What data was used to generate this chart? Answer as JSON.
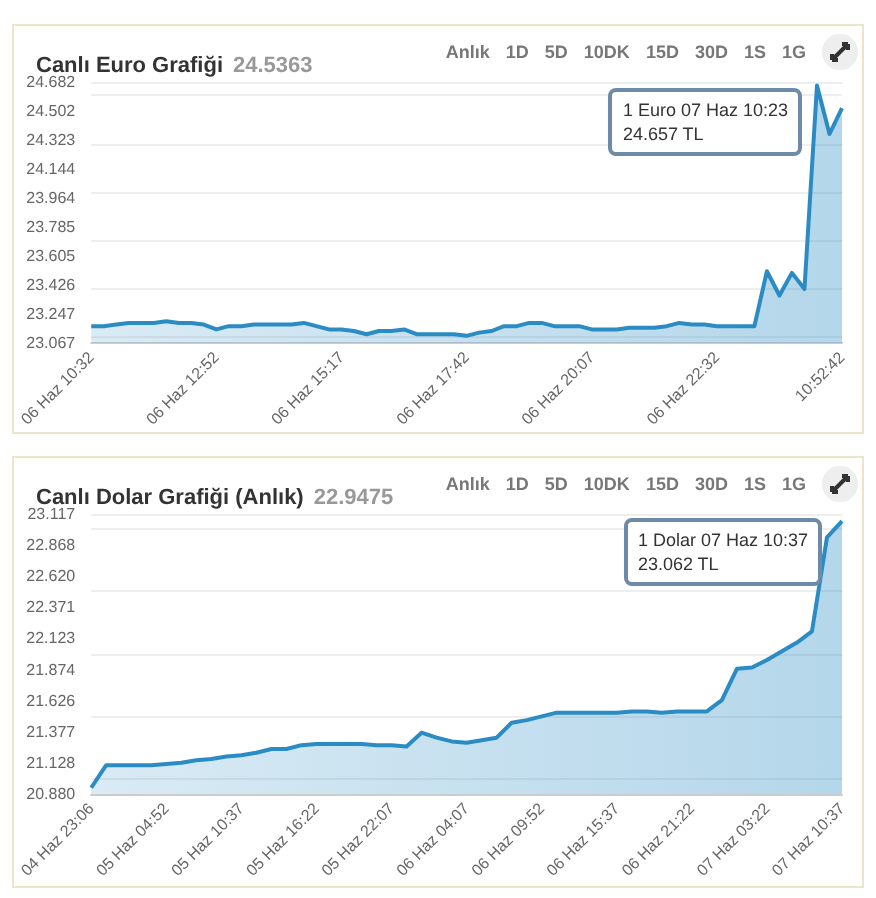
{
  "chart_data": [
    {
      "type": "area",
      "title": "Canlı Euro Grafiği",
      "subtitle": "24.5363",
      "categories": [
        "06 Haz 10:32",
        null,
        null,
        null,
        null,
        null,
        null,
        null,
        null,
        null,
        "06 Haz 12:52",
        null,
        null,
        null,
        null,
        null,
        null,
        null,
        null,
        null,
        "06 Haz 15:17",
        null,
        null,
        null,
        null,
        null,
        null,
        null,
        null,
        null,
        "06 Haz 17:42",
        null,
        null,
        null,
        null,
        null,
        null,
        null,
        null,
        null,
        "06 Haz 20:07",
        null,
        null,
        null,
        null,
        null,
        null,
        null,
        null,
        null,
        "06 Haz 22:32",
        null,
        null,
        null,
        null,
        null,
        null,
        null,
        null,
        null,
        "10:52:42"
      ],
      "series": [
        {
          "color": "#2b8cc4",
          "values": [
            23.17,
            23.17,
            23.18,
            23.19,
            23.19,
            23.19,
            23.2,
            23.19,
            23.19,
            23.18,
            23.15,
            23.17,
            23.17,
            23.18,
            23.18,
            23.18,
            23.18,
            23.19,
            23.17,
            23.15,
            23.15,
            23.14,
            23.12,
            23.14,
            23.14,
            23.15,
            23.12,
            23.12,
            23.12,
            23.12,
            23.11,
            23.13,
            23.14,
            23.17,
            23.17,
            23.19,
            23.19,
            23.17,
            23.17,
            23.17,
            23.15,
            23.15,
            23.15,
            23.16,
            23.16,
            23.16,
            23.17,
            23.19,
            23.18,
            23.18,
            23.17,
            23.17,
            23.17,
            23.17,
            23.51,
            23.36,
            23.5,
            23.4,
            24.66,
            24.36,
            24.52
          ]
        }
      ],
      "ylim": [
        23.067,
        24.682
      ],
      "yticks": [
        23.067,
        23.247,
        23.426,
        23.605,
        23.785,
        23.964,
        24.144,
        24.323,
        24.502,
        24.682
      ],
      "grid": "y",
      "marker": "none",
      "annotations": [
        "Anlık",
        "1D",
        "5D",
        "10DK",
        "15D",
        "30D",
        "1S",
        "1G",
        "1 Euro 07 Haz 10:23\n24.657 TL"
      ]
    },
    {
      "type": "area",
      "title": "Canlı Dolar Grafiği (Anlık)",
      "subtitle": "22.9475",
      "categories": [
        "04 Haz 23:06",
        null,
        null,
        null,
        null,
        "05 Haz 04:52",
        null,
        null,
        null,
        null,
        "05 Haz 10:37",
        null,
        null,
        null,
        null,
        "05 Haz 16:22",
        null,
        null,
        null,
        null,
        "05 Haz 22:07",
        null,
        null,
        null,
        null,
        "06 Haz 04:07",
        null,
        null,
        null,
        null,
        "06 Haz 09:52",
        null,
        null,
        null,
        null,
        "06 Haz 15:37",
        null,
        null,
        null,
        null,
        "06 Haz 21:22",
        null,
        null,
        null,
        null,
        "07 Haz 03:22",
        null,
        null,
        null,
        null,
        "07 Haz 10:37"
      ],
      "series": [
        {
          "color": "#2b8cc4",
          "values": [
            20.93,
            21.11,
            21.11,
            21.11,
            21.11,
            21.12,
            21.13,
            21.15,
            21.16,
            21.18,
            21.19,
            21.21,
            21.24,
            21.24,
            21.27,
            21.28,
            21.28,
            21.28,
            21.28,
            21.27,
            21.27,
            21.26,
            21.37,
            21.33,
            21.3,
            21.29,
            21.31,
            21.33,
            21.45,
            21.47,
            21.5,
            21.53,
            21.53,
            21.53,
            21.53,
            21.53,
            21.54,
            21.54,
            21.53,
            21.54,
            21.54,
            21.54,
            21.63,
            21.88,
            21.89,
            21.95,
            22.02,
            22.09,
            22.18,
            22.93,
            23.06
          ]
        }
      ],
      "ylim": [
        20.88,
        23.117
      ],
      "yticks": [
        {
          "value": 20.88,
          "label": "20.880"
        },
        21.128,
        21.377,
        21.626,
        21.874,
        22.123,
        22.371,
        {
          "value": 22.62,
          "label": "22.620"
        },
        22.868,
        23.117
      ],
      "grid": "y",
      "marker": "none",
      "annotations": [
        "Anlık",
        "1D",
        "5D",
        "10DK",
        "15D",
        "30D",
        "1S",
        "1G",
        "1 Dolar 07 Haz 10:37\n23.062 TL"
      ]
    }
  ]
}
